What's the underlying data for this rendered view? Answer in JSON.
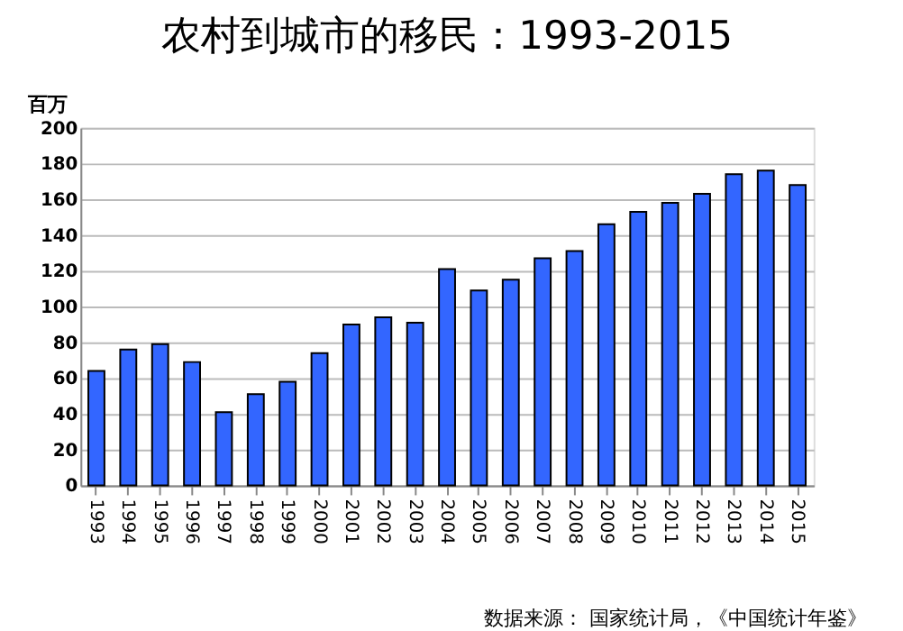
{
  "chart_data": {
    "type": "bar",
    "title": "农村到城市的移民：1993-2015",
    "ylabel": "百万",
    "categories": [
      "1993",
      "1994",
      "1995",
      "1996",
      "1997",
      "1998",
      "1999",
      "2000",
      "2001",
      "2002",
      "2003",
      "2004",
      "2005",
      "2006",
      "2007",
      "2008",
      "2009",
      "2010",
      "2011",
      "2012",
      "2013",
      "2014",
      "2015"
    ],
    "values": [
      64,
      76,
      79,
      69,
      41,
      51,
      58,
      74,
      90,
      94,
      91,
      121,
      109,
      115,
      127,
      131,
      146,
      153,
      158,
      163,
      174,
      176,
      168
    ],
    "color": "#3366ff",
    "ylim": [
      0,
      200
    ],
    "yticks": [
      0,
      20,
      40,
      60,
      80,
      100,
      120,
      140,
      160,
      180,
      200
    ],
    "grid": "y",
    "annotations": [
      "数据来源： 国家统计局，《中国统计年鉴》"
    ]
  }
}
